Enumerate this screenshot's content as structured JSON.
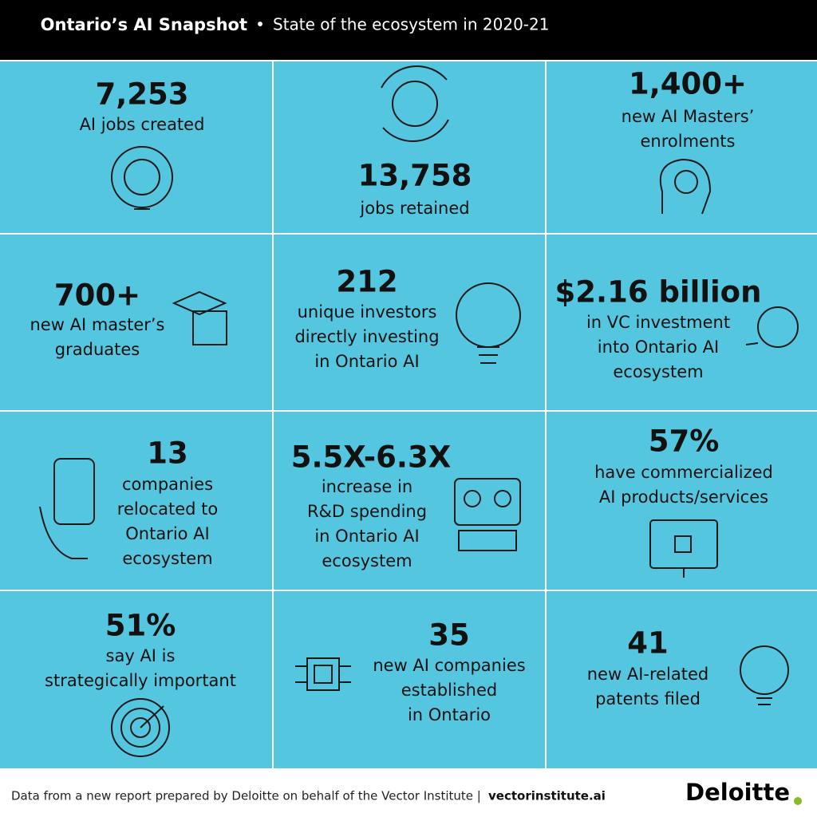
{
  "header": {
    "title": "Ontario’s AI Snapshot",
    "separator": "•",
    "subtitle": "State of the ecosystem in 2020-21"
  },
  "cells": [
    {
      "stat": "7,253",
      "lines": [
        "AI jobs created"
      ]
    },
    {
      "stat": "13,758",
      "lines": [
        "jobs retained"
      ]
    },
    {
      "stat": "1,400+",
      "lines": [
        "new AI Masters’",
        "enrolments"
      ]
    },
    {
      "stat": "700+",
      "lines": [
        "new AI master’s",
        "graduates"
      ]
    },
    {
      "stat": "212",
      "lines": [
        "unique investors",
        "directly investing",
        "in Ontario AI"
      ]
    },
    {
      "stat": "$2.16 billion",
      "lines": [
        "in VC investment",
        "into Ontario AI",
        "ecosystem"
      ]
    },
    {
      "stat": "13",
      "lines": [
        "companies",
        "relocated to",
        "Ontario AI",
        "ecosystem"
      ]
    },
    {
      "stat": "5.5X-6.3X",
      "lines": [
        "increase in",
        "R&D spending",
        "in Ontario AI",
        "ecosystem"
      ]
    },
    {
      "stat": "57%",
      "lines": [
        "have commercialized",
        "AI products/services"
      ]
    },
    {
      "stat": "51%",
      "lines": [
        "say AI is",
        "strategically important"
      ]
    },
    {
      "stat": "35",
      "lines": [
        "new AI companies",
        "established",
        "in Ontario"
      ]
    },
    {
      "stat": "41",
      "lines": [
        "new AI-related",
        "patents filed"
      ]
    }
  ],
  "footer": {
    "note": "Data from a new report prepared by Deloitte on behalf of the Vector Institute |",
    "link": "vectorinstitute.ai",
    "logo": "Deloitte"
  }
}
